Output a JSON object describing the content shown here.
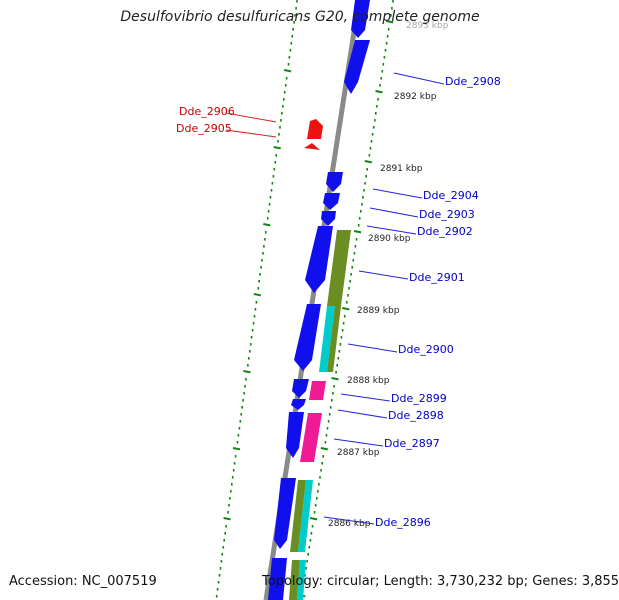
{
  "title": "Desulfovibrio desulfuricans G20, complete genome",
  "footer": {
    "accession": "Accession: NC_007519",
    "topology": "Topology: circular; Length: 3,730,232 bp; Genes: 3,855"
  },
  "colors": {
    "gene_blue": "#1010ee",
    "gene_red": "#ee1111",
    "gene_olive": "#6b8e23",
    "gene_cyan": "#00cccc",
    "gene_magenta": "#ee1a96",
    "backbone": "#8a8a8a",
    "tick_green": "#118811",
    "label_blue": "#0000cc",
    "label_red": "#cc0000"
  },
  "kbp_markers": [
    "2893 kbp",
    "2892 kbp",
    "2891 kbp",
    "2890 kbp",
    "2889 kbp",
    "2888 kbp",
    "2887 kbp",
    "2886 kbp"
  ],
  "gene_labels": {
    "dde_2908": "Dde_2908",
    "dde_2906": "Dde_2906",
    "dde_2905": "Dde_2905",
    "dde_2904": "Dde_2904",
    "dde_2903": "Dde_2903",
    "dde_2902": "Dde_2902",
    "dde_2901": "Dde_2901",
    "dde_2900": "Dde_2900",
    "dde_2899": "Dde_2899",
    "dde_2898": "Dde_2898",
    "dde_2897": "Dde_2897",
    "dde_2896": "Dde_2896"
  }
}
